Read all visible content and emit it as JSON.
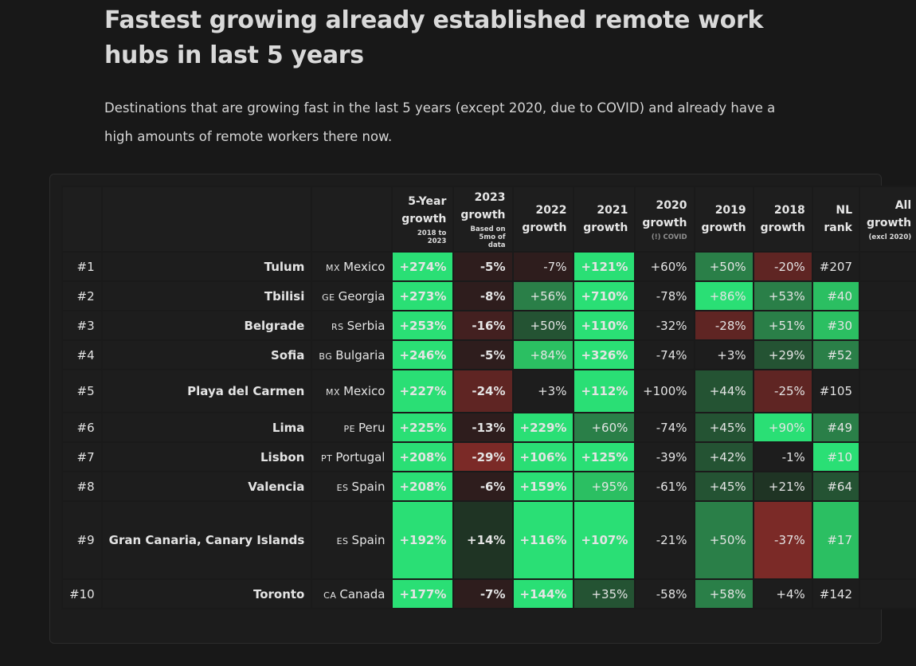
{
  "page": {
    "title": "Fastest growing already established remote work hubs in last 5 years",
    "description": "Destinations that are growing fast in the last 5 years (except 2020, due to COVID) and already have a high amounts of remote workers there now."
  },
  "table": {
    "columns": [
      {
        "label": "",
        "sub": ""
      },
      {
        "label": "",
        "sub": ""
      },
      {
        "label": "",
        "sub": ""
      },
      {
        "label": "5-Year growth",
        "sub": "2018 to 2023"
      },
      {
        "label": "2023 growth",
        "sub": "Based on 5mo of data"
      },
      {
        "label": "2022 growth",
        "sub": ""
      },
      {
        "label": "2021 growth",
        "sub": ""
      },
      {
        "label": "2020 growth",
        "sub": "(!) COVID"
      },
      {
        "label": "2019 growth",
        "sub": ""
      },
      {
        "label": "2018 growth",
        "sub": ""
      },
      {
        "label": "NL rank",
        "sub": ""
      },
      {
        "label": "All growth",
        "sub": "(excl 2020)"
      }
    ],
    "rows": [
      {
        "rank": "#1",
        "city": "Tulum",
        "cc": "MX",
        "country": "Mexico",
        "y5": "+274%",
        "y2023": "-5%",
        "y2022": "-7%",
        "y2021": "+121%",
        "y2020": "+60%",
        "y2019": "+50%",
        "y2018": "-20%",
        "nl": "#207",
        "all": ""
      },
      {
        "rank": "#2",
        "city": "Tbilisi",
        "cc": "GE",
        "country": "Georgia",
        "y5": "+273%",
        "y2023": "-8%",
        "y2022": "+56%",
        "y2021": "+710%",
        "y2020": "-78%",
        "y2019": "+86%",
        "y2018": "+53%",
        "nl": "#40",
        "all": ""
      },
      {
        "rank": "#3",
        "city": "Belgrade",
        "cc": "RS",
        "country": "Serbia",
        "y5": "+253%",
        "y2023": "-16%",
        "y2022": "+50%",
        "y2021": "+110%",
        "y2020": "-32%",
        "y2019": "-28%",
        "y2018": "+51%",
        "nl": "#30",
        "all": ""
      },
      {
        "rank": "#4",
        "city": "Sofia",
        "cc": "BG",
        "country": "Bulgaria",
        "y5": "+246%",
        "y2023": "-5%",
        "y2022": "+84%",
        "y2021": "+326%",
        "y2020": "-74%",
        "y2019": "+3%",
        "y2018": "+29%",
        "nl": "#52",
        "all": ""
      },
      {
        "rank": "#5",
        "city": "Playa del Carmen",
        "cc": "MX",
        "country": "Mexico",
        "y5": "+227%",
        "y2023": "-24%",
        "y2022": "+3%",
        "y2021": "+112%",
        "y2020": "+100%",
        "y2019": "+44%",
        "y2018": "-25%",
        "nl": "#105",
        "all": ""
      },
      {
        "rank": "#6",
        "city": "Lima",
        "cc": "PE",
        "country": "Peru",
        "y5": "+225%",
        "y2023": "-13%",
        "y2022": "+229%",
        "y2021": "+60%",
        "y2020": "-74%",
        "y2019": "+45%",
        "y2018": "+90%",
        "nl": "#49",
        "all": ""
      },
      {
        "rank": "#7",
        "city": "Lisbon",
        "cc": "PT",
        "country": "Portugal",
        "y5": "+208%",
        "y2023": "-29%",
        "y2022": "+106%",
        "y2021": "+125%",
        "y2020": "-39%",
        "y2019": "+42%",
        "y2018": "-1%",
        "nl": "#10",
        "all": ""
      },
      {
        "rank": "#8",
        "city": "Valencia",
        "cc": "ES",
        "country": "Spain",
        "y5": "+208%",
        "y2023": "-6%",
        "y2022": "+159%",
        "y2021": "+95%",
        "y2020": "-61%",
        "y2019": "+45%",
        "y2018": "+21%",
        "nl": "#64",
        "all": ""
      },
      {
        "rank": "#9",
        "city": "Gran Canaria, Canary Islands",
        "cc": "ES",
        "country": "Spain",
        "y5": "+192%",
        "y2023": "+14%",
        "y2022": "+116%",
        "y2021": "+107%",
        "y2020": "-21%",
        "y2019": "+50%",
        "y2018": "-37%",
        "nl": "#17",
        "all": ""
      },
      {
        "rank": "#10",
        "city": "Toronto",
        "cc": "CA",
        "country": "Canada",
        "y5": "+177%",
        "y2023": "-7%",
        "y2022": "+144%",
        "y2021": "+35%",
        "y2020": "-58%",
        "y2019": "+58%",
        "y2018": "+4%",
        "nl": "#142",
        "all": ""
      }
    ]
  }
}
